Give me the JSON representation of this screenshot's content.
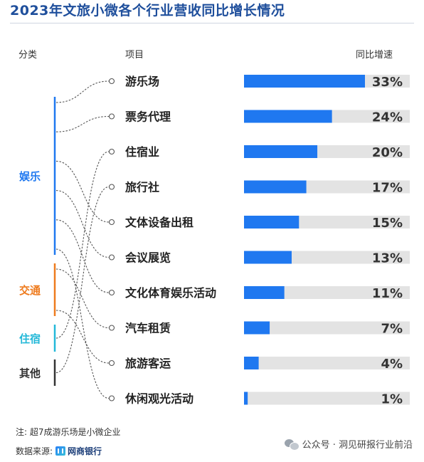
{
  "title": "2023年文旅小微各个行业营收同比增长情况",
  "headers": {
    "category": "分类",
    "item": "项目",
    "growth": "同比增速"
  },
  "note": "注: 超7成游乐场是小微企业",
  "source": {
    "label": "数据来源:",
    "brand": "网商银行",
    "brand_icon": "wangshang-logo-icon"
  },
  "wechat": {
    "text": "公众号 · 洞见研报行业前沿",
    "icon": "wechat-icon"
  },
  "colors": {
    "bar": "#1f78f0",
    "track": "#e3e3e3",
    "title": "#1f4f9c",
    "line": "#555555"
  },
  "chart_data": {
    "type": "bar",
    "orientation": "horizontal",
    "categories": [
      "游乐场",
      "票务代理",
      "住宿业",
      "旅行社",
      "文体设备出租",
      "会议展览",
      "文化体育娱乐活动",
      "汽车租赁",
      "旅游客运",
      "休闲观光活动"
    ],
    "values": [
      33,
      24,
      20,
      17,
      15,
      13,
      11,
      7,
      4,
      1
    ],
    "value_labels": [
      "33%",
      "24%",
      "20%",
      "17%",
      "15%",
      "13%",
      "11%",
      "7%",
      "4%",
      "1%"
    ],
    "xlim": [
      0,
      33
    ],
    "groups": [
      {
        "name": "娱乐",
        "color": "#1f78f0",
        "items": [
          "游乐场",
          "票务代理",
          "文体设备出租",
          "会议展览",
          "文化体育娱乐活动",
          "休闲观光活动"
        ]
      },
      {
        "name": "交通",
        "color": "#ee7b1e",
        "items": [
          "汽车租赁",
          "旅游客运"
        ]
      },
      {
        "name": "住宿",
        "color": "#23b8d8",
        "items": [
          "住宿业"
        ]
      },
      {
        "name": "其他",
        "color": "#333333",
        "items": [
          "旅行社"
        ]
      }
    ]
  }
}
